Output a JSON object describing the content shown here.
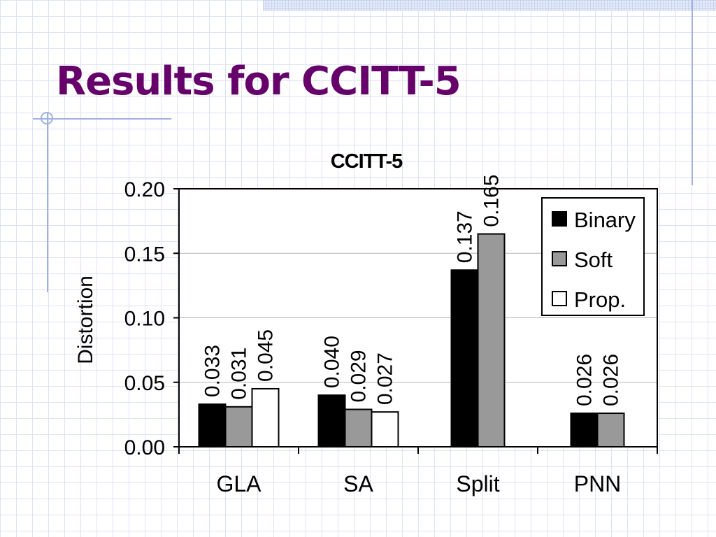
{
  "slide": {
    "title": "Results for CCITT-5"
  },
  "colors": {
    "title": "#66006a",
    "binary": "#000000",
    "soft": "#999999",
    "prop": "#ffffff",
    "decor": "#9fb2e0"
  },
  "chart_data": {
    "type": "bar",
    "title": "CCITT-5",
    "xlabel": "",
    "ylabel": "Distortion",
    "ylim": [
      0,
      0.2
    ],
    "yticks": [
      "0.00",
      "0.05",
      "0.10",
      "0.15",
      "0.20"
    ],
    "grid": true,
    "legend_position": "top-right",
    "categories": [
      "GLA",
      "SA",
      "Split",
      "PNN"
    ],
    "series": [
      {
        "name": "Binary",
        "color": "#000000",
        "values": [
          0.033,
          0.04,
          0.137,
          0.026
        ],
        "labels": [
          "0.033",
          "0.040",
          "0.137",
          "0.026"
        ]
      },
      {
        "name": "Soft",
        "color": "#999999",
        "values": [
          0.031,
          0.029,
          0.165,
          0.026
        ],
        "labels": [
          "0.031",
          "0.029",
          "0.165",
          "0.026"
        ]
      },
      {
        "name": "Prop.",
        "color": "#ffffff",
        "values": [
          0.045,
          0.027,
          null,
          null
        ],
        "labels": [
          "0.045",
          "0.027",
          null,
          null
        ]
      }
    ]
  }
}
